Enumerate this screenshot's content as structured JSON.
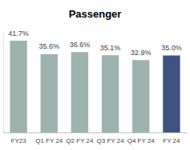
{
  "chart_data": {
    "type": "bar",
    "title": "Passenger",
    "categories": [
      "FY23",
      "Q1 FY 24",
      "Q2 FY 24",
      "Q3 FY 24",
      "Q4 FY 24",
      "FY 24"
    ],
    "values": [
      41.7,
      35.6,
      36.6,
      35.1,
      32.9,
      35
    ],
    "value_labels": [
      "41.7%",
      "35.6%",
      "36.6%",
      "35.1%",
      "32.9%",
      "35.0%"
    ],
    "colors": [
      "#9db3ae",
      "#9db3ae",
      "#9db3ae",
      "#9db3ae",
      "#9db3ae",
      "#3e5382"
    ],
    "ylim": [
      0,
      45
    ],
    "data_labels": true,
    "tick_labels": "x",
    "grid": false
  }
}
